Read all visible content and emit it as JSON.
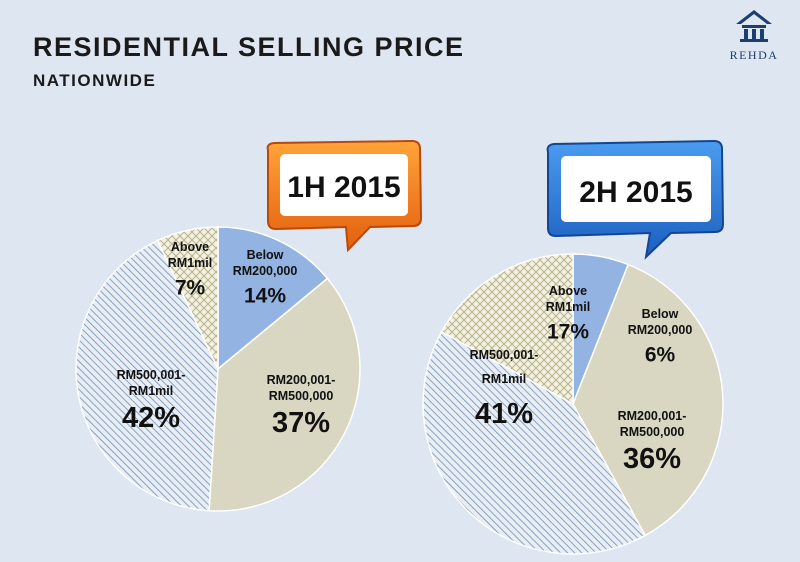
{
  "header": {
    "title": "RESIDENTIAL SELLING PRICE",
    "subtitle": "NATIONWIDE"
  },
  "logo": {
    "text": "REHDA",
    "icon": "house-icon",
    "color": "#1d3f6e"
  },
  "chart_data": [
    {
      "type": "pie",
      "title": "1H 2015",
      "bubble_color": "#f07a1a",
      "slices": [
        {
          "label_lines": [
            "Below",
            "RM200,000"
          ],
          "value": 14,
          "pct": "14%",
          "fill": "solid",
          "color": "#93b4e2"
        },
        {
          "label_lines": [
            "RM200,001-",
            "RM500,000"
          ],
          "value": 37,
          "pct": "37%",
          "fill": "solid",
          "color": "#d9d6c2"
        },
        {
          "label_lines": [
            "RM500,001-",
            "RM1mil"
          ],
          "value": 42,
          "pct": "42%",
          "fill": "diagonal",
          "color": "#aec4dd"
        },
        {
          "label_lines": [
            "Above",
            "RM1mil"
          ],
          "value": 7,
          "pct": "7%",
          "fill": "crosshatch",
          "color": "#c9c49c"
        }
      ]
    },
    {
      "type": "pie",
      "title": "2H 2015",
      "bubble_color": "#2b79d6",
      "slices": [
        {
          "label_lines": [
            "Below",
            "RM200,000"
          ],
          "value": 6,
          "pct": "6%",
          "fill": "solid",
          "color": "#93b4e2"
        },
        {
          "label_lines": [
            "RM200,001-",
            "RM500,000"
          ],
          "value": 36,
          "pct": "36%",
          "fill": "solid",
          "color": "#d9d6c2"
        },
        {
          "label_lines": [
            "RM500,001-",
            "RM1mil"
          ],
          "value": 41,
          "pct": "41%",
          "fill": "diagonal",
          "color": "#aec4dd"
        },
        {
          "label_lines": [
            "Above",
            "RM1mil"
          ],
          "value": 17,
          "pct": "17%",
          "fill": "crosshatch",
          "color": "#c9c49c"
        }
      ]
    }
  ]
}
